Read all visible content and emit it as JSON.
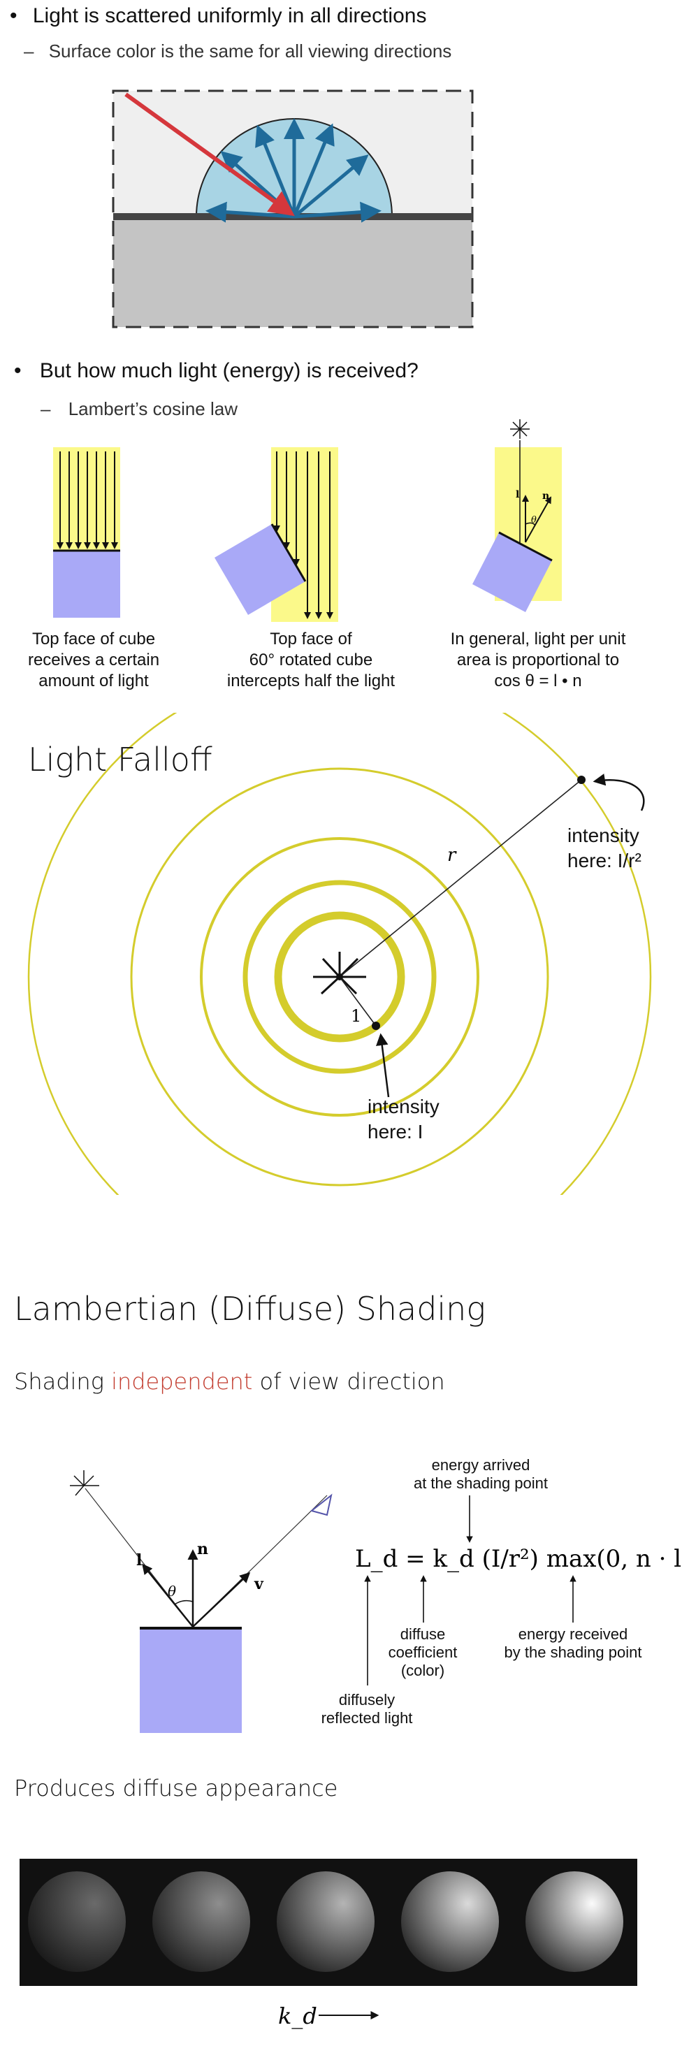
{
  "section1": {
    "bullet": "•",
    "dash": "–",
    "title": "Light is scattered uniformly in all directions",
    "sub": "Surface color is the same for all viewing directions"
  },
  "section2": {
    "bullet": "•",
    "dash": "–",
    "title": "But how much light (energy) is received?",
    "sub": "Lambert’s cosine law",
    "captions": [
      [
        "Top face of cube",
        "receives a certain",
        "amount of light"
      ],
      [
        "Top face of",
        "60° rotated cube",
        "intercepts half the light"
      ],
      [
        "In general, light per unit",
        "area is proportional to",
        "cos θ = l • n"
      ]
    ],
    "diagram_labels": {
      "l": "l",
      "n": "n",
      "theta": "θ"
    }
  },
  "falloff": {
    "title": "Light Falloff",
    "r_label": "r",
    "one_label": "1",
    "outer_intensity": [
      "intensity",
      "here: I/r²"
    ],
    "inner_intensity": [
      "intensity",
      "here: I"
    ]
  },
  "lambertian": {
    "title": "Lambertian (Diffuse) Shading",
    "subtitle_pre": "Shading ",
    "subtitle_highlight": "independent",
    "subtitle_post": " of view direction",
    "vec_l": "l",
    "vec_n": "n",
    "vec_v": "v",
    "theta": "θ",
    "equation": "L_d = k_d (I/r²) max(0, n · l)",
    "ann_energy_arrived": [
      "energy arrived",
      "at the shading point"
    ],
    "ann_diffuse_coef": [
      "diffuse",
      "coefficient",
      "(color)"
    ],
    "ann_energy_received": [
      "energy received",
      "by the shading point"
    ],
    "ann_reflected": [
      "diffusely",
      "reflected light"
    ],
    "produces": "Produces diffuse appearance",
    "kd_label": "k_d",
    "sphere_kd_levels": [
      0.2,
      0.35,
      0.55,
      0.75,
      0.95
    ]
  },
  "colors": {
    "accent_red": "#c23b2e",
    "ray_blue": "#1f6b9a",
    "hemisphere_fill": "#a8d4e4",
    "cube_purple": "#a9a9f7",
    "light_yellow": "#fbf98a",
    "ring_yellow": "#d4cc2c"
  }
}
